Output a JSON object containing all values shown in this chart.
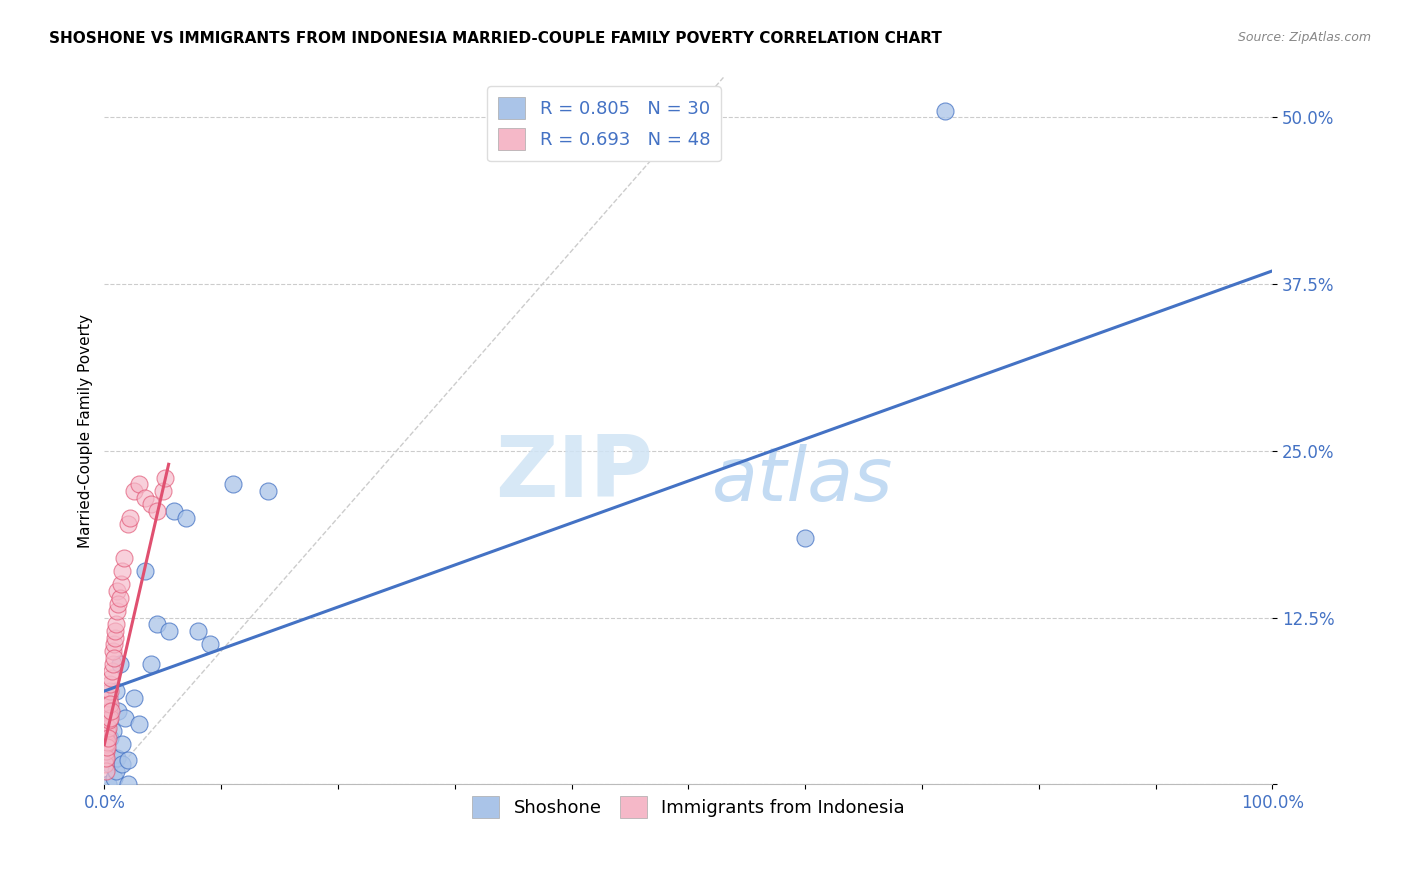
{
  "title": "SHOSHONE VS IMMIGRANTS FROM INDONESIA MARRIED-COUPLE FAMILY POVERTY CORRELATION CHART",
  "source_text": "Source: ZipAtlas.com",
  "ylabel": "Married-Couple Family Poverty",
  "legend_label1": "Shoshone",
  "legend_label2": "Immigrants from Indonesia",
  "r1": 0.805,
  "n1": 30,
  "r2": 0.693,
  "n2": 48,
  "color1": "#aac4e8",
  "color2": "#f5b8c8",
  "line_color1": "#4472c4",
  "line_color2": "#e05070",
  "x_tick_labels": [
    "0.0%",
    "",
    "",
    "",
    "",
    "",
    "",
    "",
    "",
    "",
    "100.0%"
  ],
  "y_tick_labels": [
    "",
    "12.5%",
    "25.0%",
    "37.5%",
    "50.0%"
  ],
  "xlim": [
    0,
    100
  ],
  "ylim": [
    0,
    53
  ],
  "watermark_zip": "ZIP",
  "watermark_atlas": "atlas",
  "blue_line_x0": 0,
  "blue_line_y0": 7.0,
  "blue_line_x1": 100,
  "blue_line_y1": 38.5,
  "pink_line_x0": 0.0,
  "pink_line_y0": 3.0,
  "pink_line_x1": 5.5,
  "pink_line_y1": 24.0,
  "ref_line_x0": 0,
  "ref_line_y0": 0,
  "ref_line_x1": 53,
  "ref_line_y1": 53,
  "shoshone_x": [
    0.3,
    0.5,
    0.5,
    0.7,
    0.8,
    0.9,
    1.0,
    1.0,
    1.1,
    1.2,
    1.3,
    1.5,
    1.5,
    1.8,
    2.0,
    2.0,
    2.5,
    3.0,
    3.5,
    4.0,
    4.5,
    5.5,
    6.0,
    7.0,
    8.0,
    9.0,
    11.0,
    14.0,
    60.0,
    72.0
  ],
  "shoshone_y": [
    0.0,
    1.5,
    3.5,
    4.0,
    0.5,
    2.0,
    1.0,
    7.0,
    2.0,
    5.5,
    9.0,
    3.0,
    1.5,
    5.0,
    1.8,
    0.0,
    6.5,
    4.5,
    16.0,
    9.0,
    12.0,
    11.5,
    20.5,
    20.0,
    11.5,
    10.5,
    22.5,
    22.0,
    18.5,
    50.5
  ],
  "indonesia_x": [
    0.05,
    0.08,
    0.1,
    0.1,
    0.12,
    0.15,
    0.15,
    0.18,
    0.2,
    0.22,
    0.25,
    0.28,
    0.3,
    0.32,
    0.35,
    0.38,
    0.4,
    0.42,
    0.45,
    0.48,
    0.5,
    0.52,
    0.55,
    0.6,
    0.65,
    0.7,
    0.75,
    0.8,
    0.85,
    0.9,
    0.95,
    1.0,
    1.1,
    1.1,
    1.2,
    1.3,
    1.4,
    1.5,
    1.7,
    2.0,
    2.2,
    2.5,
    3.0,
    3.5,
    4.0,
    4.5,
    5.0,
    5.2
  ],
  "indonesia_y": [
    2.0,
    1.5,
    2.5,
    3.5,
    1.0,
    3.0,
    4.5,
    2.0,
    4.0,
    3.2,
    2.8,
    5.0,
    4.2,
    6.0,
    3.5,
    5.5,
    4.8,
    6.5,
    5.0,
    7.0,
    6.0,
    7.5,
    5.5,
    8.0,
    8.5,
    9.0,
    10.0,
    10.5,
    9.5,
    11.0,
    11.5,
    12.0,
    13.0,
    14.5,
    13.5,
    14.0,
    15.0,
    16.0,
    17.0,
    19.5,
    20.0,
    22.0,
    22.5,
    21.5,
    21.0,
    20.5,
    22.0,
    23.0
  ]
}
